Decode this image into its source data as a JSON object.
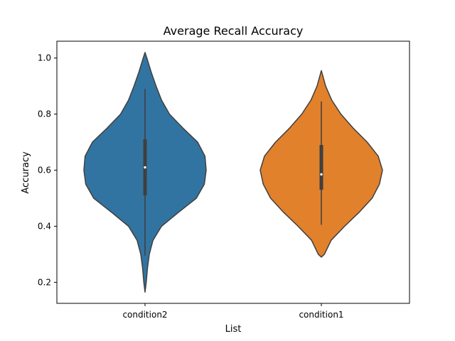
{
  "chart_data": {
    "type": "violin",
    "title": "Average Recall Accuracy",
    "xlabel": "List",
    "ylabel": "Accuracy",
    "ylim": [
      0.125,
      1.06
    ],
    "yticks": [
      0.2,
      0.4,
      0.6,
      0.8,
      1.0
    ],
    "ytick_labels": [
      "0.2",
      "0.4",
      "0.6",
      "0.8",
      "1.0"
    ],
    "categories": [
      "condition2",
      "condition1"
    ],
    "series": [
      {
        "name": "condition2",
        "color": "#3274a1",
        "median": 0.61,
        "q1": 0.51,
        "q3": 0.71,
        "whisker_low": 0.295,
        "whisker_high": 0.89,
        "density": [
          [
            0.165,
            0.0
          ],
          [
            0.2,
            0.02
          ],
          [
            0.25,
            0.04
          ],
          [
            0.3,
            0.07
          ],
          [
            0.35,
            0.13
          ],
          [
            0.4,
            0.27
          ],
          [
            0.45,
            0.55
          ],
          [
            0.5,
            0.84
          ],
          [
            0.55,
            0.97
          ],
          [
            0.6,
            1.0
          ],
          [
            0.65,
            0.98
          ],
          [
            0.7,
            0.86
          ],
          [
            0.75,
            0.62
          ],
          [
            0.8,
            0.4
          ],
          [
            0.85,
            0.27
          ],
          [
            0.9,
            0.18
          ],
          [
            0.95,
            0.1
          ],
          [
            1.0,
            0.03
          ],
          [
            1.02,
            0.0
          ]
        ]
      },
      {
        "name": "condition1",
        "color": "#e1812c",
        "median": 0.585,
        "q1": 0.53,
        "q3": 0.69,
        "whisker_low": 0.405,
        "whisker_high": 0.845,
        "density": [
          [
            0.29,
            0.0
          ],
          [
            0.3,
            0.05
          ],
          [
            0.35,
            0.16
          ],
          [
            0.4,
            0.38
          ],
          [
            0.45,
            0.62
          ],
          [
            0.5,
            0.83
          ],
          [
            0.55,
            0.95
          ],
          [
            0.6,
            1.0
          ],
          [
            0.65,
            0.93
          ],
          [
            0.7,
            0.75
          ],
          [
            0.75,
            0.52
          ],
          [
            0.8,
            0.32
          ],
          [
            0.85,
            0.17
          ],
          [
            0.9,
            0.07
          ],
          [
            0.94,
            0.02
          ],
          [
            0.955,
            0.0
          ]
        ]
      }
    ]
  }
}
